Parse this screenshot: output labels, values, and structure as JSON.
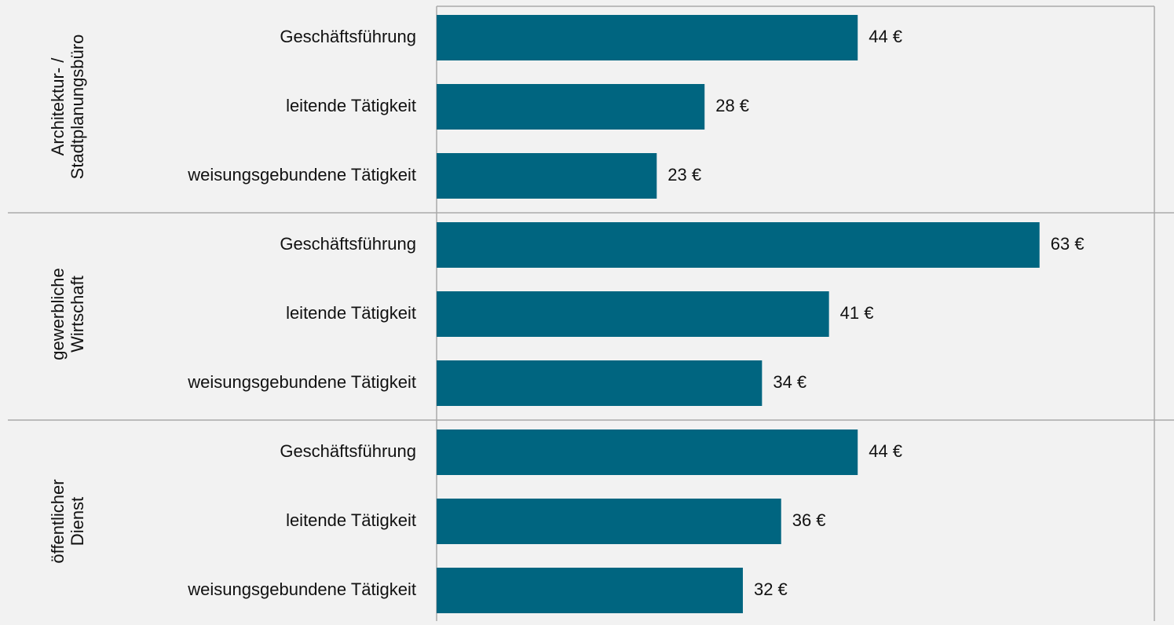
{
  "chart_data": {
    "type": "bar",
    "color": "#006580",
    "xlim": [
      0,
      75
    ],
    "groups": [
      {
        "name": [
          "Architektur- /",
          "Stadtplanungsbüro"
        ],
        "categories": [
          "Geschäftsführung",
          "leitende Tätigkeit",
          "weisungsgebundene Tätigkeit"
        ],
        "values": [
          44,
          28,
          23
        ],
        "value_labels": [
          "44 €",
          "28 €",
          "23 €"
        ]
      },
      {
        "name": [
          "gewerbliche",
          "Wirtschaft"
        ],
        "categories": [
          "Geschäftsführung",
          "leitende Tätigkeit",
          "weisungsgebundene Tätigkeit"
        ],
        "values": [
          63,
          41,
          34
        ],
        "value_labels": [
          "63 €",
          "41 €",
          "34 €"
        ]
      },
      {
        "name": [
          "öffentlicher",
          "Dienst"
        ],
        "categories": [
          "Geschäftsführung",
          "leitende Tätigkeit",
          "weisungsgebundene Tätigkeit"
        ],
        "values": [
          44,
          36,
          32
        ],
        "value_labels": [
          "44 €",
          "36 €",
          "32 €"
        ]
      }
    ]
  }
}
